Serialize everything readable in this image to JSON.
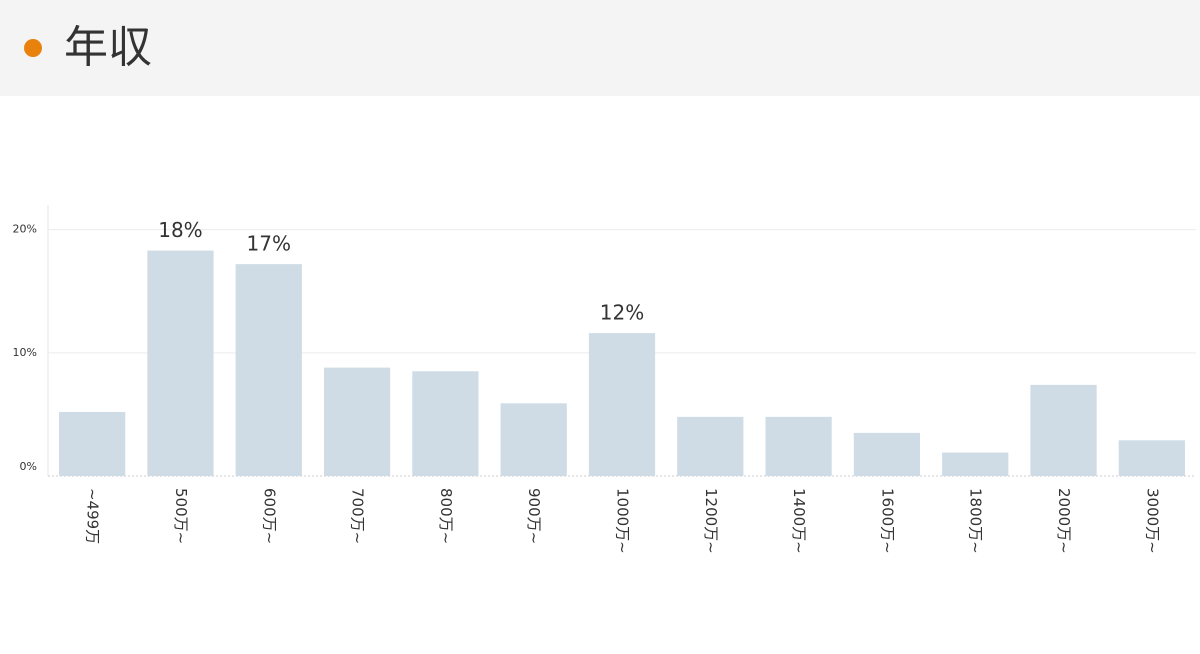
{
  "chart_data": {
    "type": "bar",
    "title": "年収",
    "categories": [
      "~499万",
      "500万~",
      "600万~",
      "700万~",
      "800万~",
      "900万~",
      "1000万~",
      "1200万~",
      "1400万~",
      "1600万~",
      "1800万~",
      "2000万~",
      "3000万~"
    ],
    "values": [
      5.2,
      18.3,
      17.2,
      8.8,
      8.5,
      5.9,
      11.6,
      4.8,
      4.8,
      3.5,
      1.9,
      7.4,
      2.9
    ],
    "value_labels": [
      null,
      "18%",
      "17%",
      null,
      null,
      null,
      "12%",
      null,
      null,
      null,
      null,
      null,
      null
    ],
    "color": "#cfdce5",
    "ylim": [
      0,
      22
    ],
    "yticks": [
      {
        "value": 0,
        "label": "0%"
      },
      {
        "value": 10,
        "label": "10%"
      },
      {
        "value": 20,
        "label": "20%"
      }
    ],
    "grid": true
  }
}
